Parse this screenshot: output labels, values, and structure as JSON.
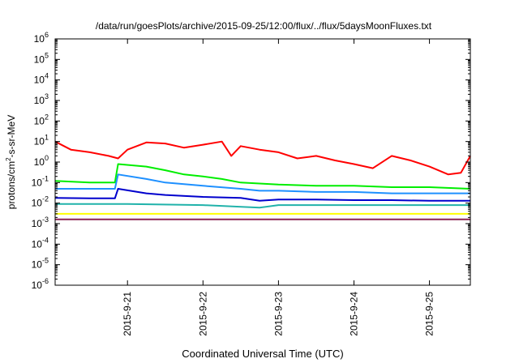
{
  "chart_data": {
    "type": "line",
    "title": "/data/run/goesPlots/archive/2015-09-25/12:00/flux/../flux/5daysMoonFluxes.txt",
    "xlabel": "Coordinated Universal Time (UTC)",
    "ylabel": "protons/cm2-s-sr-MeV",
    "ylabel_parts": {
      "pre": "protons/cm",
      "sup": "2",
      "post": "-s-sr-MeV"
    },
    "y_scale": "log",
    "ylim": [
      1e-06,
      1000000.0
    ],
    "y_ticks": [
      {
        "base": "10",
        "exp": "-6",
        "value": 1e-06
      },
      {
        "base": "10",
        "exp": "-5",
        "value": 1e-05
      },
      {
        "base": "10",
        "exp": "-4",
        "value": 0.0001
      },
      {
        "base": "10",
        "exp": "-3",
        "value": 0.001
      },
      {
        "base": "10",
        "exp": "-2",
        "value": 0.01
      },
      {
        "base": "10",
        "exp": "-1",
        "value": 0.1
      },
      {
        "base": "10",
        "exp": "0",
        "value": 1
      },
      {
        "base": "10",
        "exp": "1",
        "value": 10
      },
      {
        "base": "10",
        "exp": "2",
        "value": 100
      },
      {
        "base": "10",
        "exp": "3",
        "value": 1000
      },
      {
        "base": "10",
        "exp": "4",
        "value": 10000
      },
      {
        "base": "10",
        "exp": "5",
        "value": 100000
      },
      {
        "base": "10",
        "exp": "6",
        "value": 1000000
      }
    ],
    "x_range": [
      "2015-09-20 01:00",
      "2015-09-25 13:00"
    ],
    "x_ticks": [
      "2015-9-21",
      "2015-9-22",
      "2015-9-23",
      "2015-9-24",
      "2015-9-25"
    ],
    "grid": false,
    "series": [
      {
        "color": "#ff0000",
        "x": [
          "2015-09-20 01:00",
          "2015-09-20 06:00",
          "2015-09-20 12:00",
          "2015-09-20 18:00",
          "2015-09-20 21:00",
          "2015-09-21 00:00",
          "2015-09-21 06:00",
          "2015-09-21 12:00",
          "2015-09-21 18:00",
          "2015-09-22 00:00",
          "2015-09-22 06:00",
          "2015-09-22 09:00",
          "2015-09-22 12:00",
          "2015-09-22 18:00",
          "2015-09-23 00:00",
          "2015-09-23 06:00",
          "2015-09-23 12:00",
          "2015-09-23 18:00",
          "2015-09-24 00:00",
          "2015-09-24 06:00",
          "2015-09-24 12:00",
          "2015-09-24 18:00",
          "2015-09-25 00:00",
          "2015-09-25 06:00",
          "2015-09-25 10:00",
          "2015-09-25 13:00"
        ],
        "y": [
          10,
          4,
          3,
          2,
          1.5,
          4,
          9,
          8,
          5,
          7,
          10,
          2,
          6,
          4,
          3,
          1.5,
          2,
          1.2,
          0.8,
          0.5,
          2,
          1.2,
          0.6,
          0.25,
          0.3,
          2
        ]
      },
      {
        "color": "#00ee00",
        "x": [
          "2015-09-20 01:00",
          "2015-09-20 12:00",
          "2015-09-20 20:00",
          "2015-09-20 21:00",
          "2015-09-21 06:00",
          "2015-09-21 12:00",
          "2015-09-21 18:00",
          "2015-09-22 00:00",
          "2015-09-22 06:00",
          "2015-09-22 12:00",
          "2015-09-22 18:00",
          "2015-09-23 00:00",
          "2015-09-23 12:00",
          "2015-09-24 00:00",
          "2015-09-24 12:00",
          "2015-09-25 00:00",
          "2015-09-25 13:00"
        ],
        "y": [
          0.12,
          0.1,
          0.1,
          0.8,
          0.6,
          0.4,
          0.25,
          0.2,
          0.15,
          0.1,
          0.09,
          0.08,
          0.07,
          0.07,
          0.06,
          0.06,
          0.05
        ]
      },
      {
        "color": "#1e90ff",
        "x": [
          "2015-09-20 01:00",
          "2015-09-20 12:00",
          "2015-09-20 20:00",
          "2015-09-20 21:00",
          "2015-09-21 06:00",
          "2015-09-21 12:00",
          "2015-09-22 00:00",
          "2015-09-22 12:00",
          "2015-09-22 18:00",
          "2015-09-23 00:00",
          "2015-09-23 12:00",
          "2015-09-24 00:00",
          "2015-09-24 12:00",
          "2015-09-25 00:00",
          "2015-09-25 13:00"
        ],
        "y": [
          0.05,
          0.05,
          0.05,
          0.25,
          0.15,
          0.1,
          0.07,
          0.05,
          0.04,
          0.04,
          0.035,
          0.035,
          0.03,
          0.03,
          0.03
        ]
      },
      {
        "color": "#0000cd",
        "x": [
          "2015-09-20 01:00",
          "2015-09-20 12:00",
          "2015-09-20 20:00",
          "2015-09-20 21:00",
          "2015-09-21 06:00",
          "2015-09-21 12:00",
          "2015-09-22 00:00",
          "2015-09-22 12:00",
          "2015-09-22 18:00",
          "2015-09-23 00:00",
          "2015-09-23 12:00",
          "2015-09-24 00:00",
          "2015-09-24 12:00",
          "2015-09-25 00:00",
          "2015-09-25 13:00"
        ],
        "y": [
          0.018,
          0.017,
          0.017,
          0.05,
          0.03,
          0.025,
          0.02,
          0.018,
          0.013,
          0.015,
          0.015,
          0.014,
          0.014,
          0.013,
          0.013
        ]
      },
      {
        "color": "#20b2aa",
        "x": [
          "2015-09-20 01:00",
          "2015-09-21 00:00",
          "2015-09-22 00:00",
          "2015-09-22 18:00",
          "2015-09-23 00:00",
          "2015-09-24 00:00",
          "2015-09-25 00:00",
          "2015-09-25 13:00"
        ],
        "y": [
          0.009,
          0.009,
          0.008,
          0.006,
          0.008,
          0.008,
          0.008,
          0.008
        ]
      },
      {
        "color": "#ffff00",
        "x": [
          "2015-09-20 01:00",
          "2015-09-21 00:00",
          "2015-09-22 00:00",
          "2015-09-23 00:00",
          "2015-09-24 00:00",
          "2015-09-25 00:00",
          "2015-09-25 13:00"
        ],
        "y": [
          0.003,
          0.003,
          0.003,
          0.003,
          0.003,
          0.003,
          0.003
        ]
      },
      {
        "color": "#8b2252",
        "x": [
          "2015-09-20 01:00",
          "2015-09-21 00:00",
          "2015-09-22 00:00",
          "2015-09-23 00:00",
          "2015-09-24 00:00",
          "2015-09-25 00:00",
          "2015-09-25 13:00"
        ],
        "y": [
          0.0016,
          0.0016,
          0.0016,
          0.0016,
          0.0016,
          0.0016,
          0.0016
        ]
      }
    ]
  }
}
